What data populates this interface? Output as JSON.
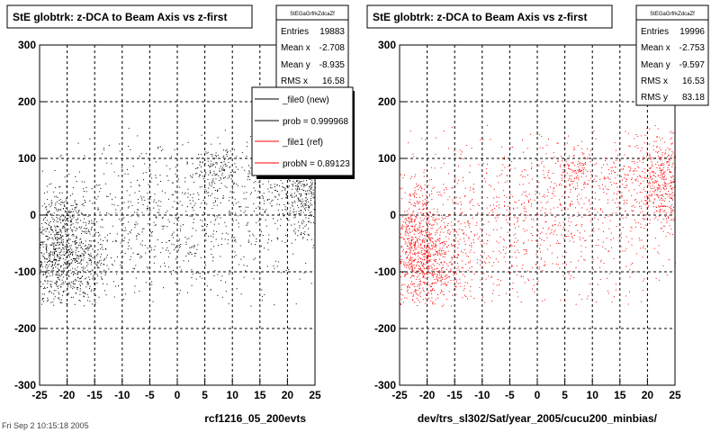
{
  "chart_data": [
    {
      "type": "scatter",
      "title": "StE globtrk: z-DCA to Beam Axis vs z-first",
      "xlabel": "rcf1216_05_200evts",
      "ylabel": "",
      "xlim": [
        -25,
        25
      ],
      "ylim": [
        -300,
        300
      ],
      "grid": true,
      "marker_color": "#000000",
      "xticks": [
        "-25",
        "-20",
        "-15",
        "-10",
        "-5",
        "0",
        "5",
        "10",
        "15",
        "20",
        "25"
      ],
      "yticks": [
        "-300",
        "-200",
        "-100",
        "0",
        "100",
        "200",
        "300"
      ],
      "stats": {
        "name": "StEGaGrfrkZdcaZf",
        "rows": [
          {
            "label": "Entries",
            "value": "19883"
          },
          {
            "label": "Mean x",
            "value": "-2.708"
          },
          {
            "label": "Mean y",
            "value": "-8.935"
          },
          {
            "label": "RMS x",
            "value": "16.58"
          }
        ]
      },
      "legend": {
        "placement": "right",
        "entries": [
          {
            "label": "_file0 (new)",
            "color": "#000000"
          },
          {
            "label": "prob = 0.999968",
            "color": "#000000"
          },
          {
            "label": "_file1 (ref)",
            "color": "#ff0000"
          },
          {
            "label": "probN = 0.89123",
            "color": "#ff0000"
          }
        ]
      },
      "clusters": [
        {
          "x": -22,
          "y": -60,
          "sx": 2.5,
          "sy": 55,
          "n": 700
        },
        {
          "x": -17,
          "y": -80,
          "sx": 3,
          "sy": 50,
          "n": 350
        },
        {
          "x": 23,
          "y": 50,
          "sx": 2,
          "sy": 40,
          "n": 350
        },
        {
          "x": 17,
          "y": 60,
          "sx": 3,
          "sy": 50,
          "n": 150
        },
        {
          "x": 7,
          "y": 80,
          "sx": 2,
          "sy": 20,
          "n": 120
        },
        {
          "x": 0,
          "y": -10,
          "sx": 14,
          "sy": 75,
          "n": 900
        }
      ]
    },
    {
      "type": "scatter",
      "title": "StE globtrk: z-DCA to Beam Axis vs z-first",
      "xlabel": "dev/trs_sl302/Sat/year_2005/cucu200_minbias/",
      "ylabel": "",
      "xlim": [
        -25,
        25
      ],
      "ylim": [
        -300,
        300
      ],
      "grid": true,
      "marker_color": "#ff0000",
      "xticks": [
        "-25",
        "-20",
        "-15",
        "-10",
        "-5",
        "0",
        "5",
        "10",
        "15",
        "20",
        "25"
      ],
      "yticks": [
        "-300",
        "-200",
        "-100",
        "0",
        "100",
        "200",
        "300"
      ],
      "stats": {
        "name": "StEGaGrfrkZdcaZf",
        "rows": [
          {
            "label": "Entries",
            "value": "19996"
          },
          {
            "label": "Mean x",
            "value": "-2.753"
          },
          {
            "label": "Mean y",
            "value": "-9.597"
          },
          {
            "label": "RMS x",
            "value": "16.53"
          },
          {
            "label": "RMS y",
            "value": "83.18"
          }
        ]
      },
      "clusters": [
        {
          "x": -22,
          "y": -60,
          "sx": 2.5,
          "sy": 55,
          "n": 750
        },
        {
          "x": -17,
          "y": -80,
          "sx": 3,
          "sy": 50,
          "n": 350
        },
        {
          "x": 23,
          "y": 60,
          "sx": 2,
          "sy": 45,
          "n": 400
        },
        {
          "x": 17,
          "y": 70,
          "sx": 3,
          "sy": 50,
          "n": 180
        },
        {
          "x": 7,
          "y": 80,
          "sx": 2,
          "sy": 20,
          "n": 120
        },
        {
          "x": 0,
          "y": -5,
          "sx": 14,
          "sy": 75,
          "n": 1000
        }
      ]
    }
  ],
  "footer_stamp": "Fri Sep 2 10:15:18 2005"
}
